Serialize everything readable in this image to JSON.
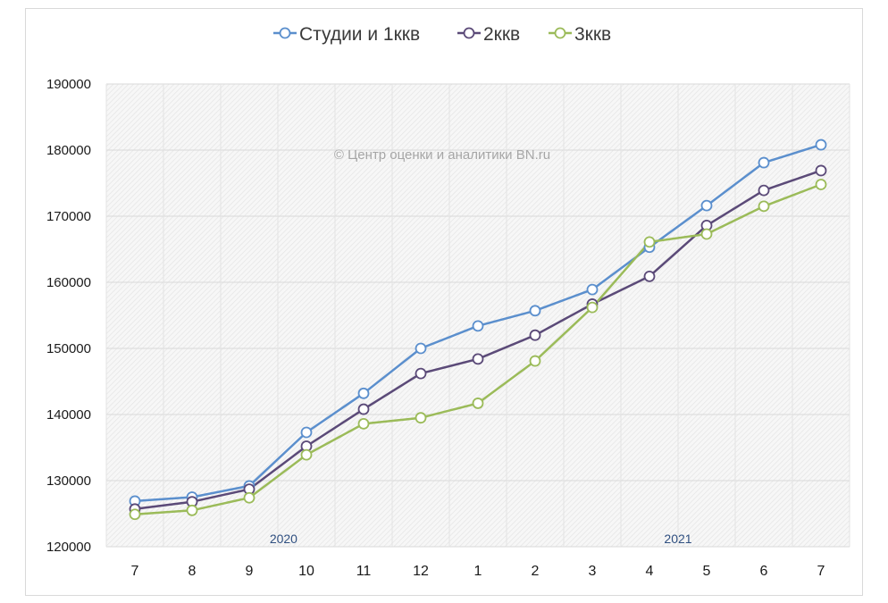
{
  "chart_data": {
    "type": "line",
    "categories": [
      "7",
      "8",
      "9",
      "10",
      "11",
      "12",
      "1",
      "2",
      "3",
      "4",
      "5",
      "6",
      "7"
    ],
    "year_labels": [
      {
        "text": "2020",
        "category_index": 2.6
      },
      {
        "text": "2021",
        "category_index": 9.5
      }
    ],
    "ylim": [
      120000,
      190000
    ],
    "yticks": [
      "120000",
      "130000",
      "140000",
      "150000",
      "160000",
      "170000",
      "180000",
      "190000"
    ],
    "ytick_values": [
      120000,
      130000,
      140000,
      150000,
      160000,
      170000,
      180000,
      190000
    ],
    "watermark": "© Центр оценки и аналитики BN.ru",
    "legend_position": "top",
    "grid": true,
    "series": [
      {
        "name": "Студии и 1ккв",
        "color": "#5b8fcd",
        "values": [
          126900,
          127500,
          129200,
          137300,
          143200,
          150000,
          153400,
          155700,
          158900,
          165300,
          171600,
          178100,
          180800
        ]
      },
      {
        "name": "2ккв",
        "color": "#5b4a78",
        "values": [
          125700,
          126800,
          128700,
          135200,
          140800,
          146200,
          148400,
          152000,
          156700,
          160900,
          168600,
          173900,
          176900
        ]
      },
      {
        "name": "3ккв",
        "color": "#9bbb59",
        "values": [
          124900,
          125500,
          127400,
          133900,
          138600,
          139500,
          141700,
          148100,
          156200,
          166100,
          167300,
          171500,
          174800
        ]
      }
    ]
  }
}
